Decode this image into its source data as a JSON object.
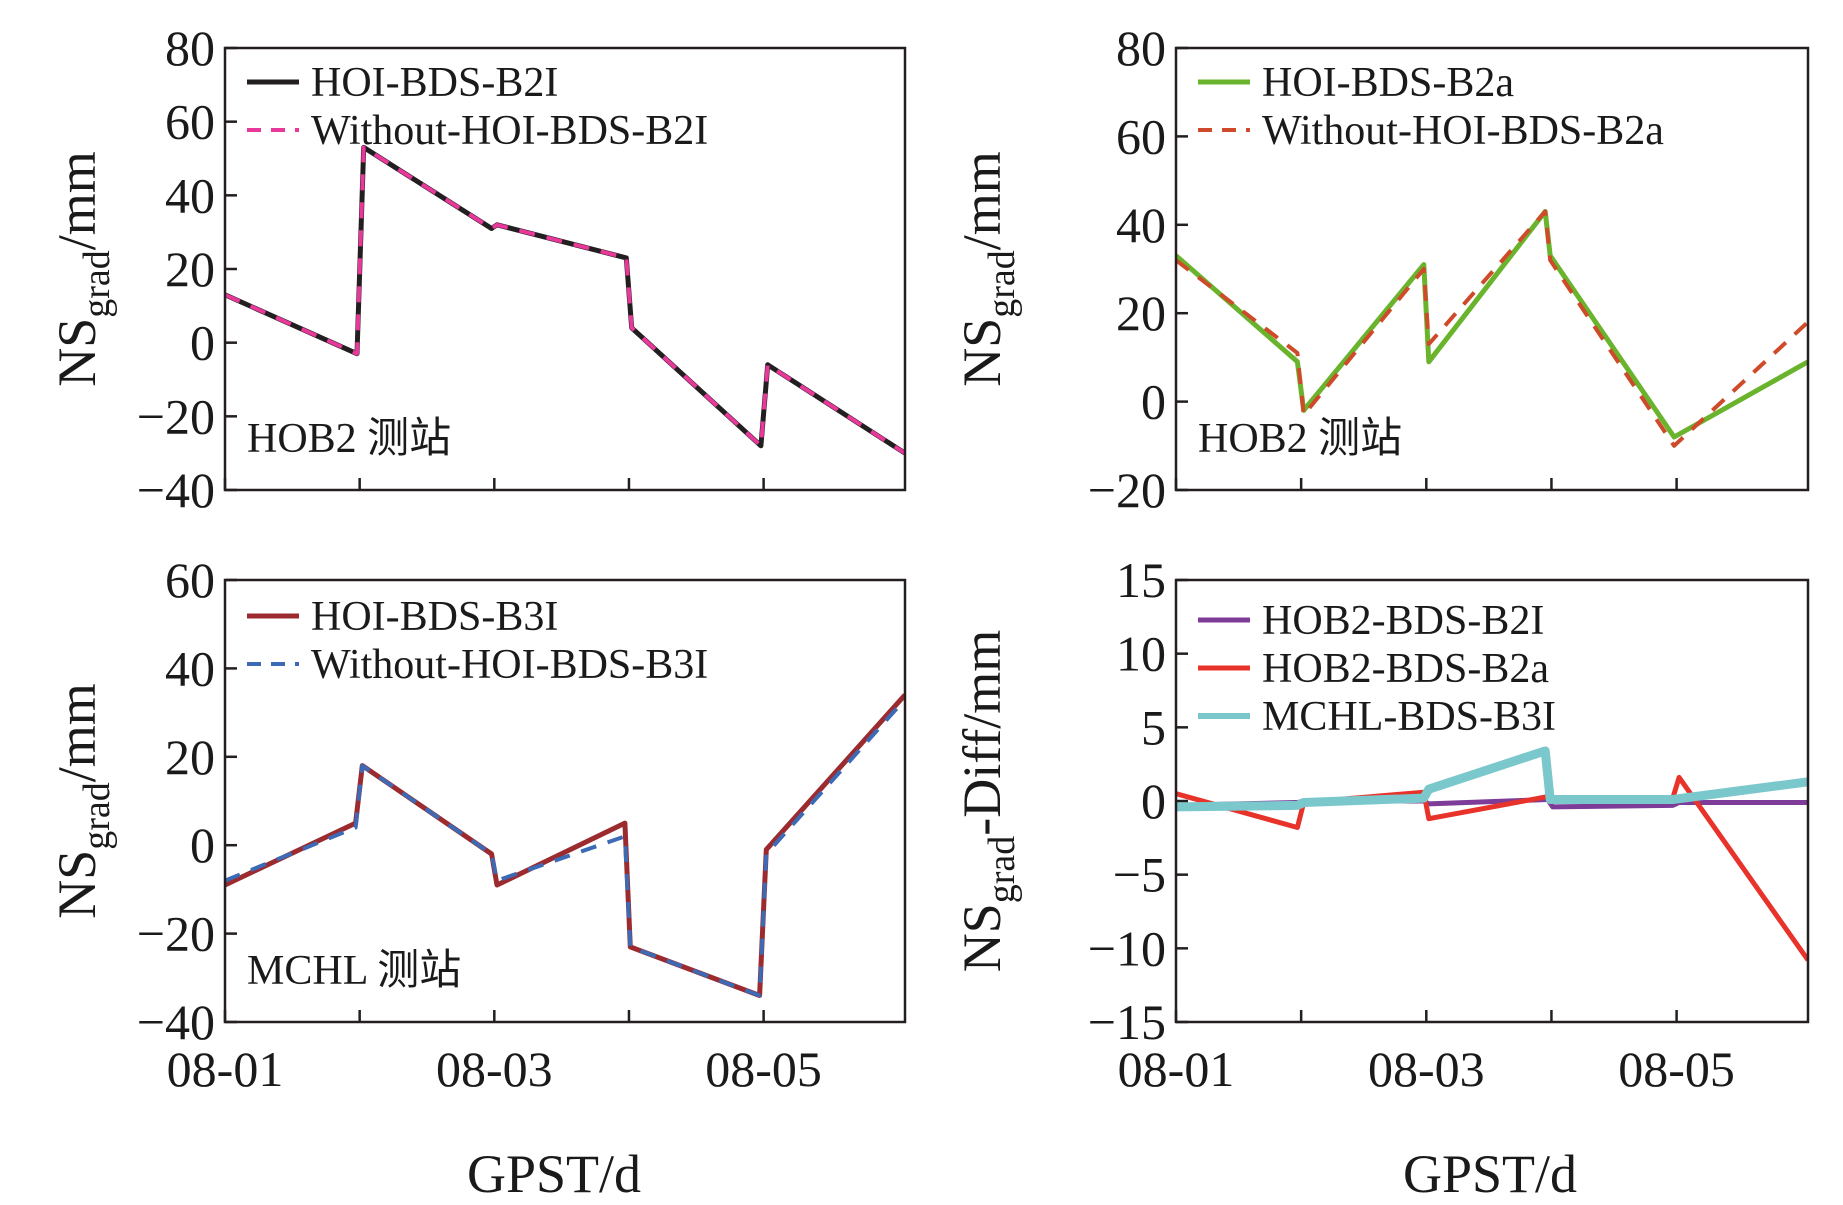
{
  "x_axis": {
    "label": "GPST/d",
    "range": [
      1,
      6.05
    ],
    "ticks": [
      1,
      2,
      3,
      4,
      5
    ],
    "tick_labels": [
      "08-01",
      "",
      "08-03",
      "",
      "08-05"
    ]
  },
  "chart_data": [
    {
      "type": "line",
      "id": "tl",
      "ylabel": {
        "base": "NS",
        "sub": "grad",
        "suffix": "/mm"
      },
      "ylim": [
        -40,
        80
      ],
      "yticks": [
        -40,
        -20,
        0,
        20,
        40,
        60,
        80
      ],
      "ytick_labels": [
        "−40",
        "−20",
        "0",
        "20",
        "40",
        "60",
        "80"
      ],
      "show_xticklabels": false,
      "annotation": "HOB2 测站",
      "series": [
        {
          "name": "HOI-BDS-B2I",
          "color": "#231f20",
          "dash": "",
          "width": 5,
          "x": [
            1,
            1.98,
            2.03,
            2.98,
            3.02,
            3.98,
            4.02,
            4.98,
            5.03,
            6.05
          ],
          "y": [
            13,
            -3,
            53,
            31,
            32,
            23,
            4,
            -28,
            -6,
            -30
          ]
        },
        {
          "name": "Without-HOI-BDS-B2I",
          "color": "#e8389a",
          "dash": "16 12",
          "width": 4,
          "x": [
            1,
            1.98,
            2.03,
            2.98,
            3.02,
            3.98,
            4.02,
            4.98,
            5.03,
            6.05
          ],
          "y": [
            13,
            -3,
            53,
            31,
            32,
            23,
            4,
            -28,
            -6,
            -30
          ]
        }
      ]
    },
    {
      "type": "line",
      "id": "tr",
      "ylabel": {
        "base": "NS",
        "sub": "grad",
        "suffix": "/mm"
      },
      "ylim": [
        -20,
        80
      ],
      "yticks": [
        -20,
        0,
        20,
        40,
        60,
        80
      ],
      "ytick_labels": [
        "−20",
        "0",
        "20",
        "40",
        "60",
        "80"
      ],
      "show_xticklabels": false,
      "annotation": "HOB2 测站",
      "series": [
        {
          "name": "HOI-BDS-B2a",
          "color": "#6ab42d",
          "dash": "",
          "width": 5,
          "x": [
            1,
            1.97,
            2.02,
            2.98,
            3.02,
            3.95,
            3.99,
            4.98,
            6.05
          ],
          "y": [
            33,
            9,
            -2,
            31,
            9,
            43,
            33,
            -8,
            9
          ]
        },
        {
          "name": "Without-HOI-BDS-B2a",
          "color": "#cf4a2a",
          "dash": "16 12",
          "width": 4,
          "x": [
            1,
            1.97,
            2.02,
            2.98,
            3.02,
            3.95,
            3.99,
            4.98,
            6.05
          ],
          "y": [
            32,
            11,
            -3,
            30,
            13,
            43,
            32,
            -10,
            18
          ]
        }
      ]
    },
    {
      "type": "line",
      "id": "bl",
      "ylabel": {
        "base": "NS",
        "sub": "grad",
        "suffix": "/mm"
      },
      "ylim": [
        -40,
        60
      ],
      "yticks": [
        -40,
        -20,
        0,
        20,
        40,
        60
      ],
      "ytick_labels": [
        "−40",
        "−20",
        "0",
        "20",
        "40",
        "60"
      ],
      "show_xticklabels": true,
      "annotation": "MCHL 测站",
      "series": [
        {
          "name": "HOI-BDS-B3I",
          "color": "#9b2b2e",
          "dash": "",
          "width": 5,
          "x": [
            1,
            1.97,
            2.02,
            2.98,
            3.02,
            3.97,
            4.01,
            4.97,
            5.02,
            6.05
          ],
          "y": [
            -9,
            5,
            18,
            -2,
            -9,
            5,
            -23,
            -34,
            -1,
            34
          ]
        },
        {
          "name": "Without-HOI-BDS-B3I",
          "color": "#3c6ab5",
          "dash": "16 12",
          "width": 4,
          "x": [
            1,
            1.97,
            2.02,
            2.98,
            3.02,
            3.97,
            4.01,
            4.97,
            5.02,
            6.05
          ],
          "y": [
            -8,
            4,
            18,
            -2,
            -8,
            2,
            -23,
            -34,
            -2,
            33
          ]
        }
      ]
    },
    {
      "type": "line",
      "id": "br",
      "ylabel": {
        "base": "NS",
        "sub": "grad",
        "suffix": "-Diff/mm"
      },
      "ylim": [
        -15,
        15
      ],
      "yticks": [
        -15,
        -10,
        -5,
        0,
        5,
        10,
        15
      ],
      "ytick_labels": [
        "−15",
        "−10",
        "−5",
        "0",
        "5",
        "10",
        "15"
      ],
      "show_xticklabels": true,
      "annotation": "",
      "series": [
        {
          "name": "HOB2-BDS-B2I",
          "color": "#7c3c98",
          "dash": "",
          "width": 5,
          "x": [
            1,
            1.97,
            2.02,
            2.98,
            3.02,
            3.97,
            4.01,
            4.97,
            5.02,
            6.05
          ],
          "y": [
            -0.3,
            -0.1,
            0,
            0,
            -0.2,
            0.1,
            -0.4,
            -0.3,
            -0.1,
            -0.1
          ]
        },
        {
          "name": "HOB2-BDS-B2a",
          "color": "#e8332a",
          "dash": "",
          "width": 5,
          "x": [
            1,
            1.97,
            2.02,
            2.98,
            3.02,
            3.97,
            4.01,
            4.97,
            5.02,
            6.05
          ],
          "y": [
            0.5,
            -1.8,
            -0.1,
            0.6,
            -1.2,
            0.3,
            0.1,
            0.2,
            1.6,
            -10.8
          ]
        },
        {
          "name": "MCHL-BDS-B3I",
          "color": "#7ac8cc",
          "dash": "",
          "width": 9,
          "x": [
            1,
            1.97,
            2.02,
            2.98,
            3.02,
            3.95,
            3.99,
            4.97,
            6.05
          ],
          "y": [
            -0.4,
            -0.3,
            -0.1,
            0.2,
            0.8,
            3.4,
            0.1,
            0.1,
            1.3
          ]
        }
      ]
    }
  ]
}
